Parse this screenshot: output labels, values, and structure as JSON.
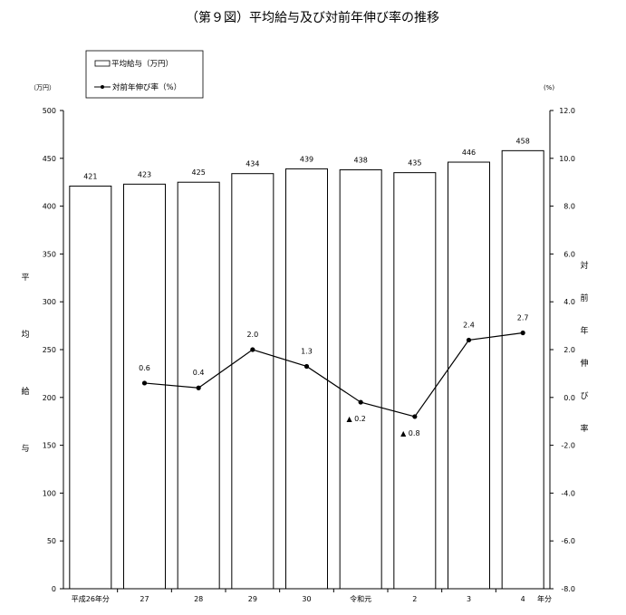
{
  "chart_data": {
    "type": "bar",
    "title": "（第９図）平均給与及び対前年伸び率の推移",
    "categories": [
      "平成26年分",
      "27",
      "28",
      "29",
      "30",
      "令和元",
      "2",
      "3",
      "4"
    ],
    "x_suffix": "年分",
    "series": [
      {
        "name": "平均給与（万円）",
        "type": "bar",
        "axis": "left",
        "values": [
          421,
          423,
          425,
          434,
          439,
          438,
          435,
          446,
          458
        ],
        "labels": [
          "421",
          "423",
          "425",
          "434",
          "439",
          "438",
          "435",
          "446",
          "458"
        ]
      },
      {
        "name": "対前年伸び率（%）",
        "type": "line",
        "axis": "right",
        "values": [
          null,
          0.6,
          0.4,
          2.0,
          1.3,
          -0.2,
          -0.8,
          2.4,
          2.7
        ],
        "labels": [
          "",
          "0.6",
          "0.4",
          "2.0",
          "1.3",
          "0.2",
          "0.8",
          "2.4",
          "2.7"
        ],
        "negative_marker": "▲"
      }
    ],
    "y_left": {
      "label": "平均給与",
      "unit": "（万円）",
      "ylim": [
        0,
        500
      ],
      "ticks": [
        "0",
        "50",
        "100",
        "150",
        "200",
        "250",
        "300",
        "350",
        "400",
        "450",
        "500"
      ]
    },
    "y_right": {
      "label": "対前年伸び率",
      "unit": "(%)",
      "ylim": [
        -8,
        12
      ],
      "ticks": [
        "-8.0",
        "-6.0",
        "-4.0",
        "-2.0",
        "0.0",
        "2.0",
        "4.0",
        "6.0",
        "8.0",
        "10.0",
        "12.0"
      ]
    },
    "grid": false,
    "legend_position": "top-left"
  }
}
